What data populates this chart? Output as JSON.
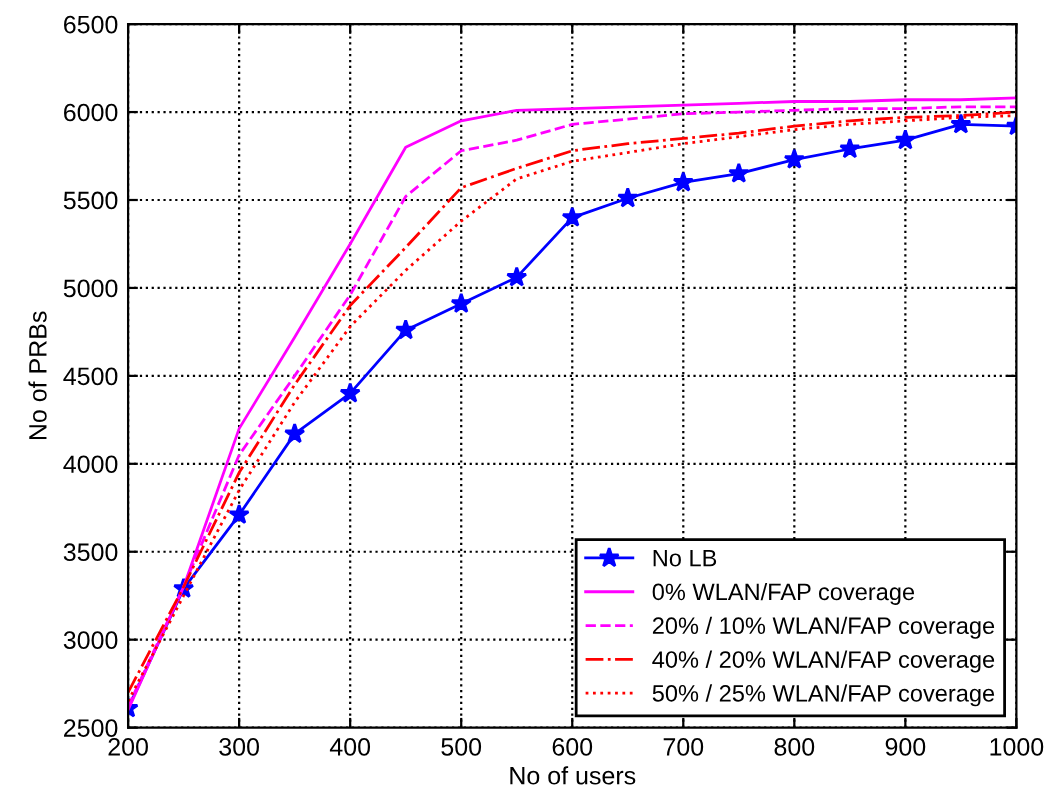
{
  "chart_data": {
    "type": "line",
    "xlabel": "No of users",
    "ylabel": "No of PRBs",
    "x": [
      200,
      250,
      300,
      350,
      400,
      450,
      500,
      550,
      600,
      650,
      700,
      750,
      800,
      850,
      900,
      950,
      1000
    ],
    "xlim": [
      200,
      1000
    ],
    "xticks": [
      200,
      300,
      400,
      500,
      600,
      700,
      800,
      900,
      1000
    ],
    "ylim": [
      2500,
      6500
    ],
    "yticks": [
      2500,
      3000,
      3500,
      4000,
      4500,
      5000,
      5500,
      6000,
      6500
    ],
    "grid": true,
    "legend": "bottom right",
    "series": [
      {
        "name": "No LB",
        "color": "#0000ff",
        "marker": "star",
        "line_style": "solid",
        "values": [
          2610,
          3290,
          3710,
          4170,
          4400,
          4760,
          4910,
          5060,
          5400,
          5510,
          5600,
          5650,
          5730,
          5790,
          5840,
          5930,
          5920
        ]
      },
      {
        "name": "0% WLAN/FAP coverage",
        "color": "#ff00ff",
        "line_style": "solid",
        "values": [
          2600,
          3300,
          4200,
          4720,
          5250,
          5800,
          5950,
          6010,
          6020,
          6030,
          6040,
          6050,
          6060,
          6060,
          6070,
          6070,
          6080
        ]
      },
      {
        "name": "20% / 10% WLAN/FAP coverage",
        "color": "#ff00ff",
        "line_style": "dashed",
        "values": [
          2620,
          3300,
          4050,
          4500,
          4960,
          5520,
          5780,
          5840,
          5930,
          5960,
          5990,
          6000,
          6010,
          6020,
          6020,
          6030,
          6030
        ]
      },
      {
        "name": "40% / 20% WLAN/FAP coverage",
        "color": "#ff0000",
        "line_style": "dashdot",
        "values": [
          2700,
          3300,
          3950,
          4450,
          4900,
          5230,
          5570,
          5680,
          5780,
          5820,
          5850,
          5880,
          5920,
          5950,
          5970,
          5980,
          6000
        ]
      },
      {
        "name": "50% / 25% WLAN/FAP coverage",
        "color": "#ff0000",
        "line_style": "dotted",
        "values": [
          2650,
          3250,
          3850,
          4350,
          4780,
          5100,
          5380,
          5620,
          5720,
          5770,
          5820,
          5860,
          5900,
          5930,
          5950,
          5970,
          5980
        ]
      }
    ]
  }
}
